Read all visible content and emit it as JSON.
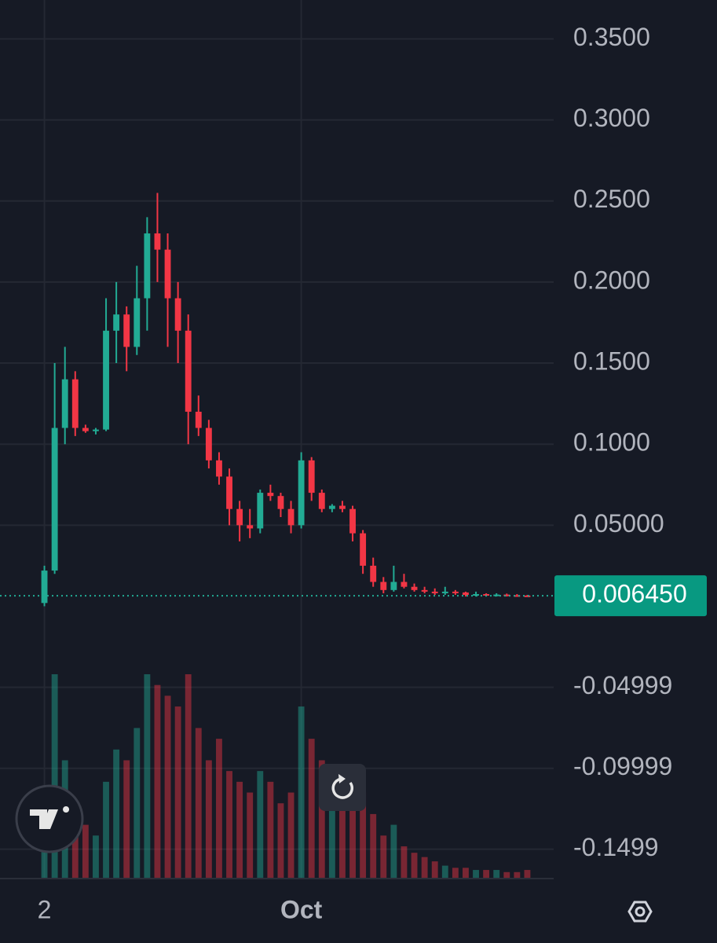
{
  "chart_data": {
    "type": "candlestick",
    "categories": [
      "2",
      null,
      null,
      null,
      null,
      null,
      null,
      null,
      null,
      null,
      null,
      null,
      null,
      null,
      null,
      null,
      null,
      null,
      null,
      null,
      null,
      null,
      null,
      null,
      null,
      "Oct",
      null,
      null,
      null,
      null,
      null,
      null,
      null,
      null,
      null,
      null,
      null,
      null,
      null,
      null,
      null,
      null,
      null,
      null,
      null,
      null,
      null,
      null
    ],
    "open": [
      0.002,
      0.022,
      0.11,
      0.14,
      0.11,
      0.108,
      0.109,
      0.17,
      0.18,
      0.16,
      0.19,
      0.23,
      0.22,
      0.19,
      0.17,
      0.12,
      0.11,
      0.09,
      0.08,
      0.06,
      0.05,
      0.048,
      0.07,
      0.068,
      0.06,
      0.05,
      0.09,
      0.07,
      0.06,
      0.062,
      0.06,
      0.045,
      0.025,
      0.015,
      0.01,
      0.015,
      0.012,
      0.01,
      0.009,
      0.008,
      0.009,
      0.0085,
      0.007,
      0.0075,
      0.007,
      0.0072,
      0.0068,
      0.0066
    ],
    "high": [
      0.025,
      0.15,
      0.16,
      0.145,
      0.112,
      0.11,
      0.19,
      0.2,
      0.185,
      0.21,
      0.24,
      0.255,
      0.23,
      0.2,
      0.18,
      0.13,
      0.115,
      0.095,
      0.085,
      0.065,
      0.06,
      0.072,
      0.075,
      0.07,
      0.065,
      0.095,
      0.092,
      0.072,
      0.063,
      0.065,
      0.062,
      0.047,
      0.03,
      0.018,
      0.025,
      0.02,
      0.014,
      0.012,
      0.011,
      0.012,
      0.01,
      0.009,
      0.009,
      0.008,
      0.008,
      0.0078,
      0.0075,
      0.007
    ],
    "low": [
      0.0,
      0.02,
      0.1,
      0.105,
      0.107,
      0.106,
      0.108,
      0.15,
      0.145,
      0.155,
      0.17,
      0.2,
      0.16,
      0.15,
      0.1,
      0.105,
      0.085,
      0.075,
      0.05,
      0.04,
      0.042,
      0.045,
      0.065,
      0.055,
      0.045,
      0.048,
      0.065,
      0.058,
      0.058,
      0.058,
      0.04,
      0.02,
      0.012,
      0.008,
      0.009,
      0.011,
      0.009,
      0.008,
      0.007,
      0.007,
      0.007,
      0.006,
      0.006,
      0.006,
      0.006,
      0.006,
      0.0058,
      0.006
    ],
    "close": [
      0.022,
      0.11,
      0.14,
      0.11,
      0.108,
      0.109,
      0.17,
      0.18,
      0.16,
      0.19,
      0.23,
      0.22,
      0.19,
      0.17,
      0.12,
      0.11,
      0.09,
      0.08,
      0.06,
      0.05,
      0.048,
      0.07,
      0.068,
      0.06,
      0.05,
      0.09,
      0.07,
      0.06,
      0.062,
      0.06,
      0.045,
      0.025,
      0.015,
      0.01,
      0.015,
      0.012,
      0.01,
      0.009,
      0.008,
      0.009,
      0.0085,
      0.007,
      0.0075,
      0.007,
      0.0072,
      0.0068,
      0.0066,
      0.00645
    ],
    "volume": [
      30,
      95,
      55,
      35,
      25,
      20,
      45,
      60,
      55,
      70,
      95,
      90,
      85,
      80,
      95,
      70,
      55,
      65,
      50,
      45,
      40,
      50,
      45,
      35,
      40,
      80,
      65,
      55,
      50,
      45,
      45,
      40,
      30,
      20,
      25,
      15,
      12,
      10,
      8,
      6,
      5,
      5,
      4,
      4,
      4,
      3,
      3,
      4
    ],
    "up_color": "#22ab94",
    "down_color": "#f23645",
    "last_price": {
      "value": 0.00645,
      "label": "0.006450"
    },
    "ylim": [
      -0.168,
      0.374
    ],
    "yticks": [
      {
        "value": 0.35,
        "label": "0.3500"
      },
      {
        "value": 0.3,
        "label": "0.3000"
      },
      {
        "value": 0.25,
        "label": "0.2500"
      },
      {
        "value": 0.2,
        "label": "0.2000"
      },
      {
        "value": 0.15,
        "label": "0.1500"
      },
      {
        "value": 0.1,
        "label": "0.1000"
      },
      {
        "value": 0.05,
        "label": "0.05000"
      },
      -0.04999,
      -0.09999,
      -0.1499
    ],
    "grid": true
  }
}
